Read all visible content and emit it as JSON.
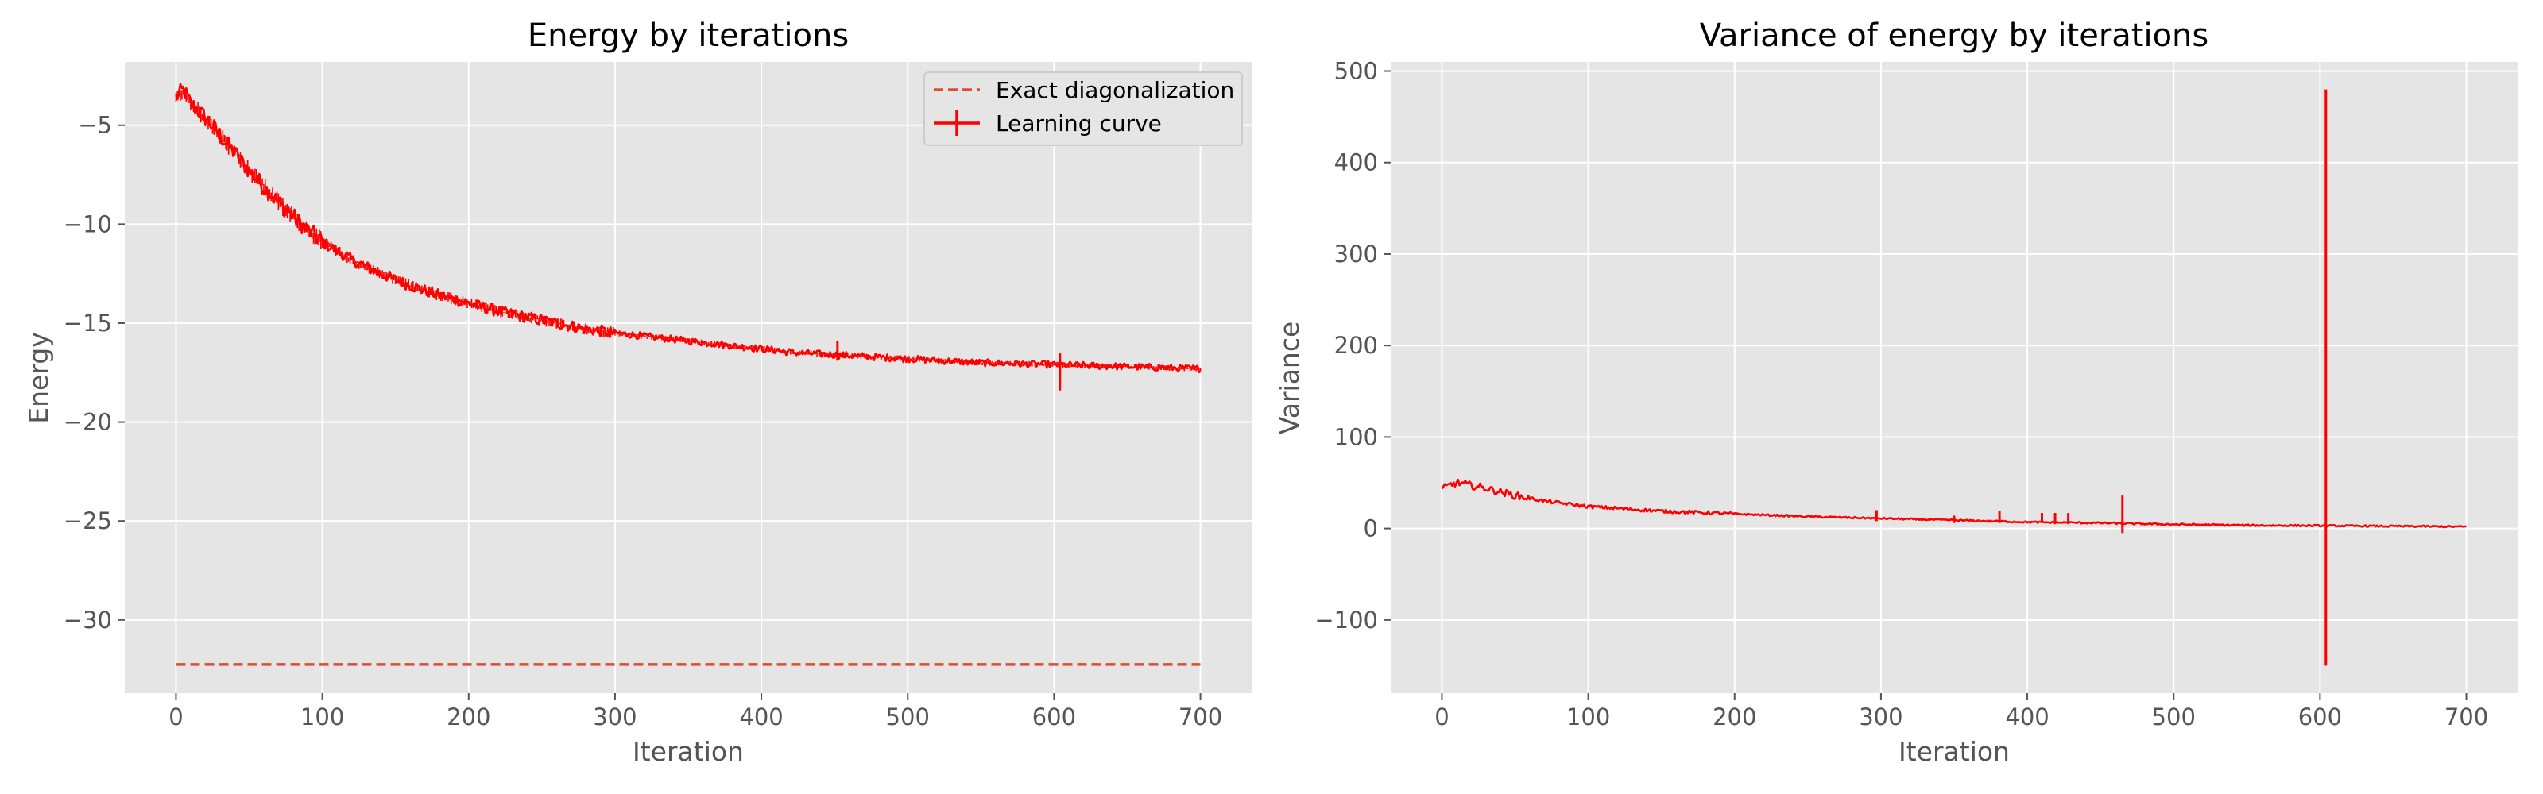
{
  "colors": {
    "line": "#ff0000",
    "exact": "#e24a33",
    "panel": "#e5e5e5",
    "grid": "#ffffff",
    "legend_bg": "#e5e5e5",
    "legend_border": "#cccccc"
  },
  "chart_data": [
    {
      "type": "line",
      "title": "Energy by iterations",
      "xlabel": "Iteration",
      "ylabel": "Energy",
      "xlim": [
        -35,
        735
      ],
      "ylim": [
        -33.7,
        -1.8
      ],
      "xticks": [
        0,
        100,
        200,
        300,
        400,
        500,
        600,
        700
      ],
      "yticks": [
        -5,
        -10,
        -15,
        -20,
        -25,
        -30
      ],
      "ytick_labels": [
        "−5",
        "−10",
        "−15",
        "−20",
        "−25",
        "−30"
      ],
      "xtick_labels": [
        "0",
        "100",
        "200",
        "300",
        "400",
        "500",
        "600",
        "700"
      ],
      "grid": true,
      "legend_position": "top-right",
      "series": [
        {
          "name": "Exact diagonalization",
          "style": "dashed",
          "x": [
            0,
            700
          ],
          "y": [
            -32.25,
            -32.25
          ]
        },
        {
          "name": "Learning curve",
          "style": "solid-with-errorbars",
          "x": [
            0,
            5,
            10,
            20,
            30,
            40,
            50,
            60,
            70,
            80,
            90,
            100,
            120,
            140,
            160,
            180,
            200,
            220,
            240,
            260,
            280,
            300,
            325,
            350,
            375,
            400,
            425,
            450,
            475,
            500,
            525,
            550,
            575,
            600,
            625,
            650,
            675,
            700
          ],
          "y": [
            -3.6,
            -3.2,
            -3.9,
            -4.6,
            -5.5,
            -6.4,
            -7.3,
            -8.1,
            -8.9,
            -9.6,
            -10.3,
            -10.9,
            -11.8,
            -12.5,
            -13.1,
            -13.6,
            -14.0,
            -14.4,
            -14.7,
            -15.0,
            -15.3,
            -15.5,
            -15.7,
            -15.9,
            -16.1,
            -16.3,
            -16.5,
            -16.6,
            -16.7,
            -16.8,
            -16.9,
            -17.0,
            -17.05,
            -17.1,
            -17.15,
            -17.2,
            -17.25,
            -17.3
          ],
          "spikes": [
            {
              "x": 452,
              "low": -16.9,
              "high": -15.9
            },
            {
              "x": 604,
              "low": -18.4,
              "high": -16.5
            }
          ]
        }
      ]
    },
    {
      "type": "line",
      "title": "Variance of energy by iterations",
      "xlabel": "Iteration",
      "ylabel": "Variance",
      "xlim": [
        -35,
        735
      ],
      "ylim": [
        -180,
        510
      ],
      "xticks": [
        0,
        100,
        200,
        300,
        400,
        500,
        600,
        700
      ],
      "yticks": [
        500,
        400,
        300,
        200,
        100,
        0,
        -100
      ],
      "ytick_labels": [
        "500",
        "400",
        "300",
        "200",
        "100",
        "0",
        "−100"
      ],
      "xtick_labels": [
        "0",
        "100",
        "200",
        "300",
        "400",
        "500",
        "600",
        "700"
      ],
      "grid": true,
      "series": [
        {
          "style": "solid",
          "x": [
            0,
            5,
            10,
            15,
            20,
            30,
            40,
            50,
            60,
            70,
            80,
            90,
            100,
            150,
            200,
            250,
            300,
            350,
            400,
            450,
            500,
            550,
            600,
            650,
            700
          ],
          "y": [
            43,
            47,
            50,
            49,
            47,
            44,
            40,
            36,
            33,
            30,
            28,
            26,
            24,
            19,
            16,
            13,
            11,
            9,
            7,
            6,
            4.5,
            3.5,
            3,
            2.5,
            2
          ],
          "spikes": [
            {
              "x": 297,
              "low": 8,
              "high": 20
            },
            {
              "x": 350,
              "low": 6,
              "high": 14
            },
            {
              "x": 381,
              "low": 6,
              "high": 19
            },
            {
              "x": 410,
              "low": 6,
              "high": 17
            },
            {
              "x": 419,
              "low": 6,
              "high": 17
            },
            {
              "x": 428,
              "low": 6,
              "high": 17
            },
            {
              "x": 465,
              "low": -5,
              "high": 36
            },
            {
              "x": 604,
              "low": -150,
              "high": 480
            }
          ]
        }
      ]
    }
  ]
}
